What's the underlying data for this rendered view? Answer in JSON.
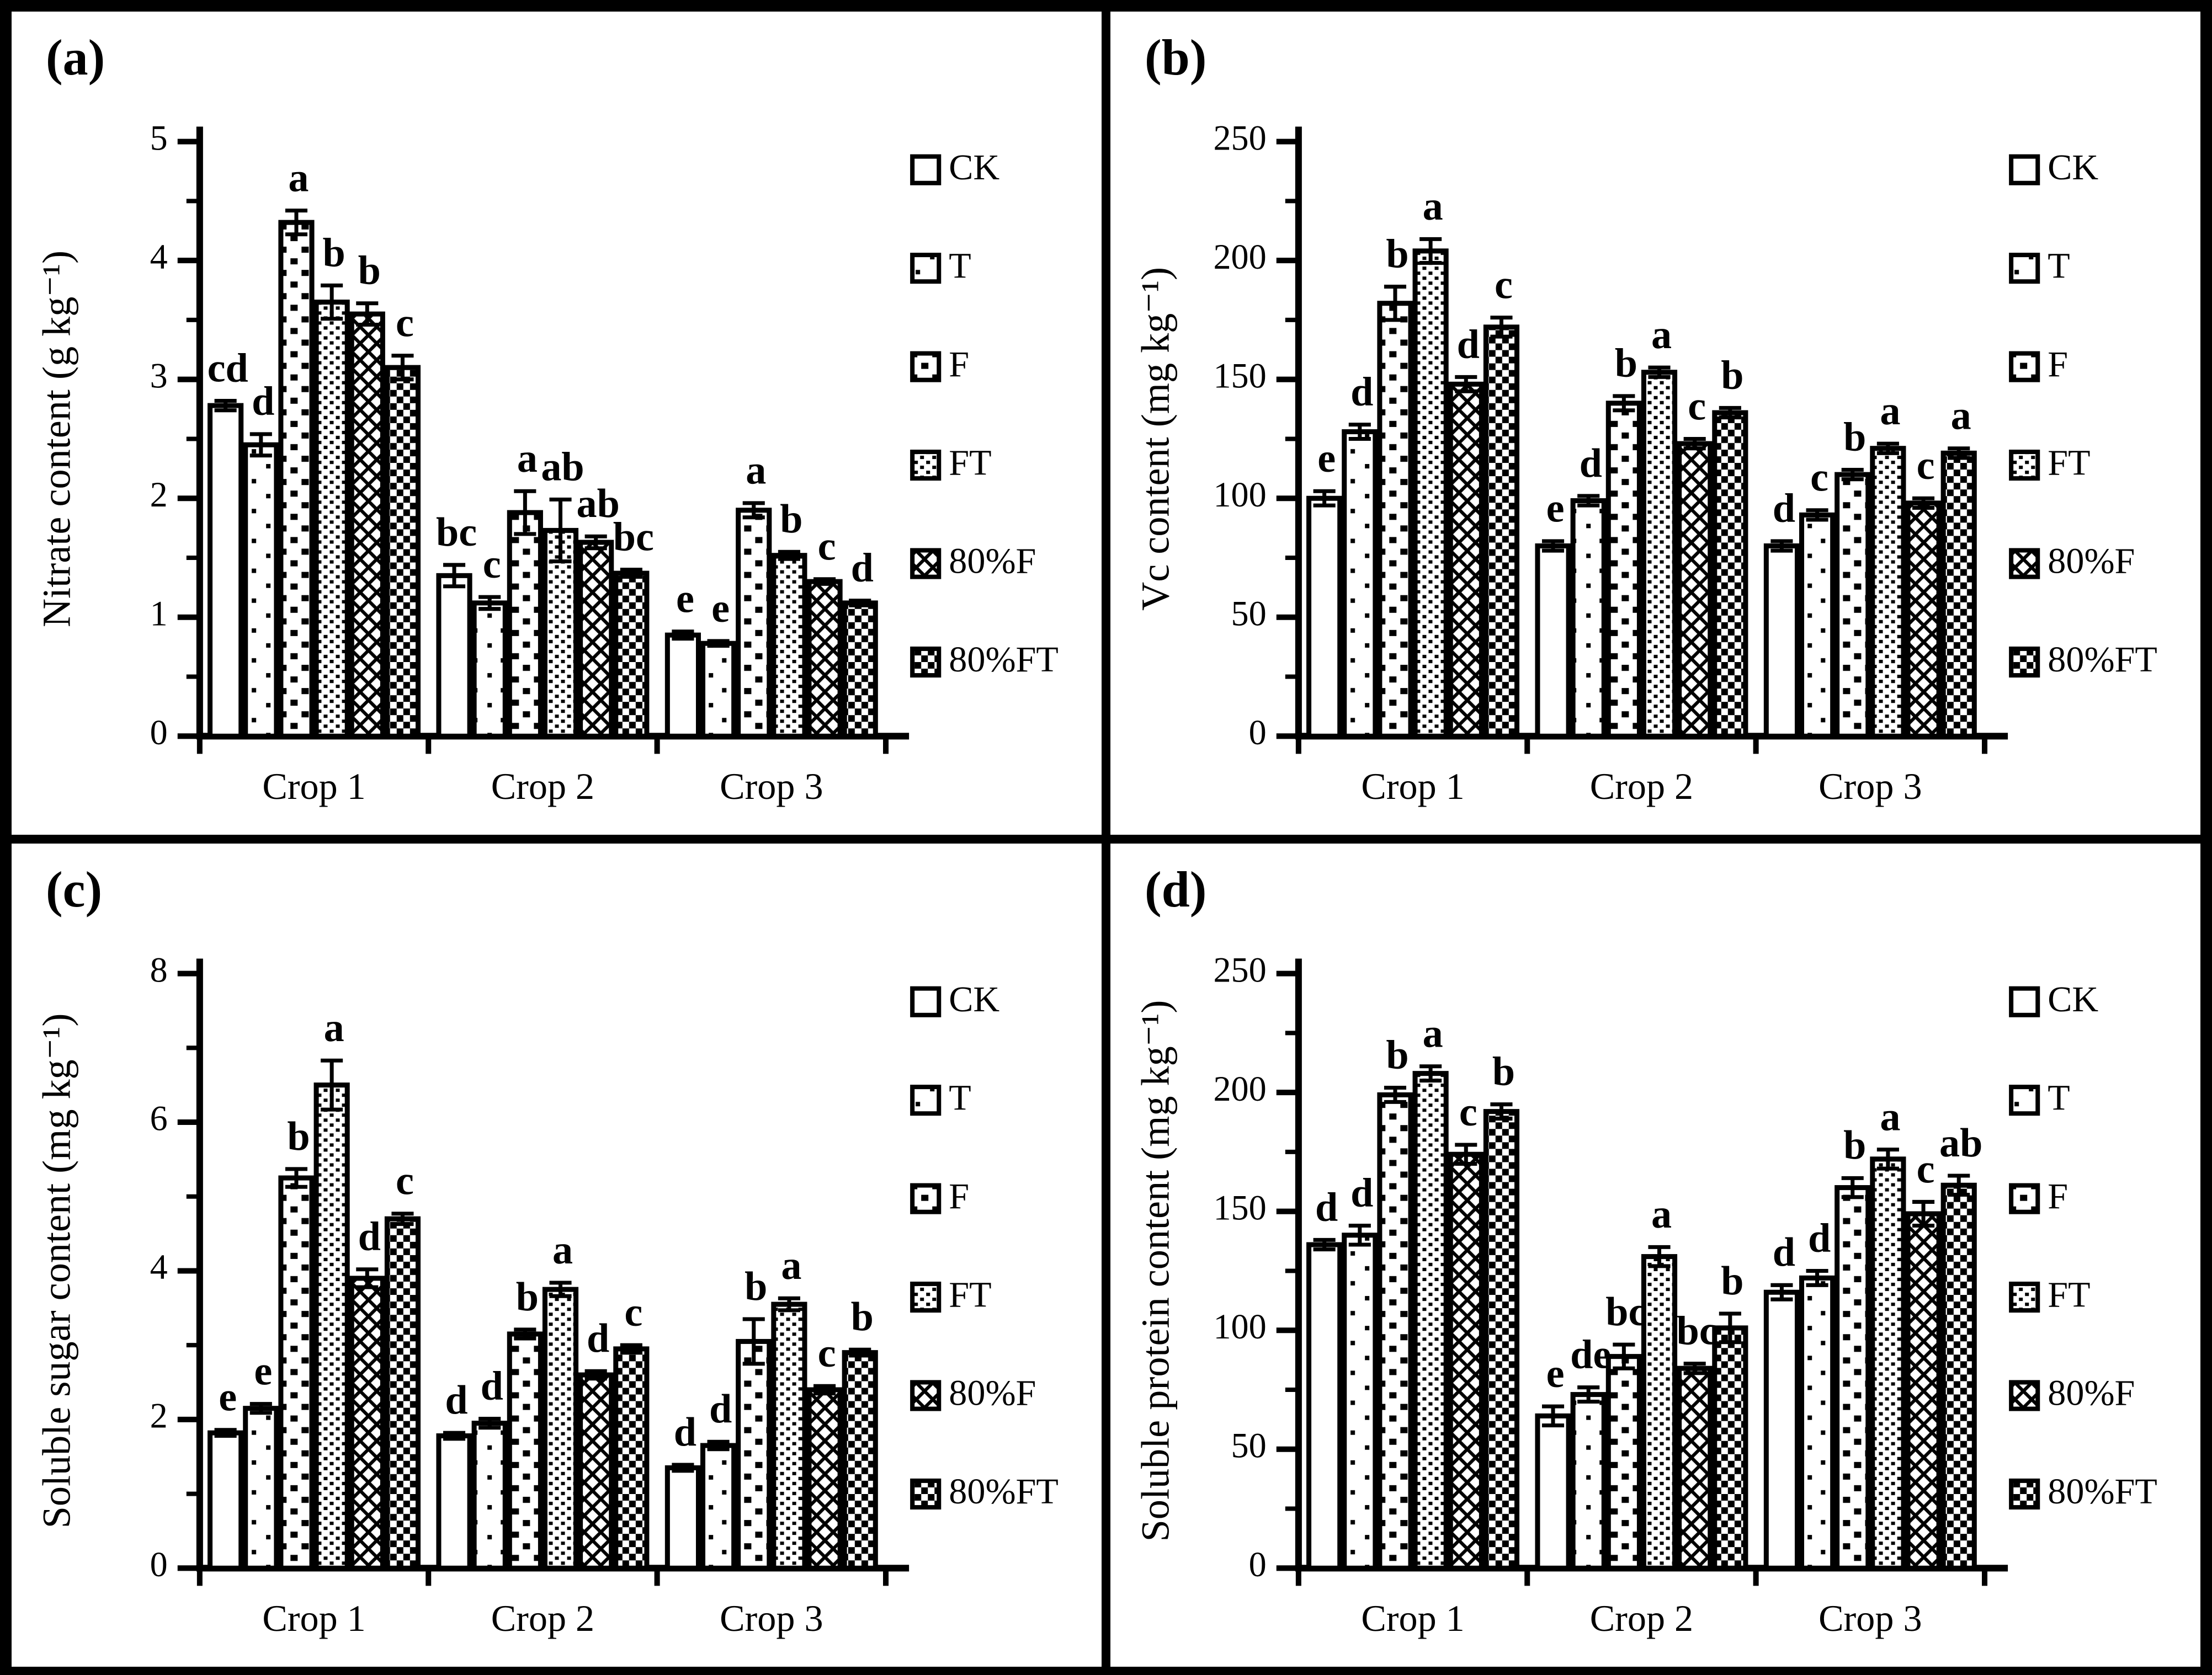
{
  "chart_data": [
    {
      "panel": "(a)",
      "type": "bar",
      "ylabel": "Nitrate content (g kg⁻¹)",
      "ylim": [
        0,
        5
      ],
      "ytick_step": 1,
      "yminor_step": 0.5,
      "grid": false,
      "legend_position": "right",
      "categories": [
        "Crop 1",
        "Crop 2",
        "Crop 3"
      ],
      "series": [
        {
          "name": "CK",
          "values": [
            2.78,
            1.35,
            0.85
          ],
          "errors": [
            0.04,
            0.09,
            0.03
          ],
          "letters": [
            "cd",
            "bc",
            "e"
          ]
        },
        {
          "name": "T",
          "values": [
            2.45,
            1.12,
            0.78
          ],
          "errors": [
            0.09,
            0.05,
            0.02
          ],
          "letters": [
            "d",
            "c",
            "e"
          ]
        },
        {
          "name": "F",
          "values": [
            4.32,
            1.88,
            1.9
          ],
          "errors": [
            0.1,
            0.18,
            0.06
          ],
          "letters": [
            "a",
            "a",
            "a"
          ]
        },
        {
          "name": "FT",
          "values": [
            3.65,
            1.73,
            1.52
          ],
          "errors": [
            0.14,
            0.26,
            0.03
          ],
          "letters": [
            "b",
            "ab",
            "b"
          ]
        },
        {
          "name": "80%F",
          "values": [
            3.55,
            1.63,
            1.3
          ],
          "errors": [
            0.09,
            0.05,
            0.02
          ],
          "letters": [
            "b",
            "ab",
            "c"
          ]
        },
        {
          "name": "80%FT",
          "values": [
            3.1,
            1.37,
            1.12
          ],
          "errors": [
            0.1,
            0.03,
            0.02
          ],
          "letters": [
            "c",
            "bc",
            "d"
          ]
        }
      ]
    },
    {
      "panel": "(b)",
      "type": "bar",
      "ylabel": "Vc content (mg kg⁻¹)",
      "ylim": [
        0,
        250
      ],
      "ytick_step": 50,
      "yminor_step": 25,
      "grid": false,
      "legend_position": "right",
      "categories": [
        "Crop 1",
        "Crop 2",
        "Crop 3"
      ],
      "series": [
        {
          "name": "CK",
          "values": [
            100,
            80,
            80
          ],
          "errors": [
            3,
            2,
            2
          ],
          "letters": [
            "e",
            "e",
            "d"
          ]
        },
        {
          "name": "T",
          "values": [
            128,
            99,
            93
          ],
          "errors": [
            3,
            2,
            2
          ],
          "letters": [
            "d",
            "d",
            "c"
          ]
        },
        {
          "name": "F",
          "values": [
            182,
            140,
            110
          ],
          "errors": [
            7,
            3,
            2
          ],
          "letters": [
            "b",
            "b",
            "b"
          ]
        },
        {
          "name": "FT",
          "values": [
            204,
            153,
            121
          ],
          "errors": [
            5,
            2,
            2
          ],
          "letters": [
            "a",
            "a",
            "a"
          ]
        },
        {
          "name": "80%F",
          "values": [
            148,
            123,
            98
          ],
          "errors": [
            3,
            2,
            2
          ],
          "letters": [
            "d",
            "c",
            "c"
          ]
        },
        {
          "name": "80%FT",
          "values": [
            172,
            136,
            119
          ],
          "errors": [
            4,
            2,
            2
          ],
          "letters": [
            "c",
            "b",
            "a"
          ]
        }
      ]
    },
    {
      "panel": "(c)",
      "type": "bar",
      "ylabel": "Soluble sugar content (mg kg⁻¹)",
      "ylim": [
        0,
        8
      ],
      "ytick_step": 2,
      "yminor_step": 1,
      "grid": false,
      "legend_position": "right",
      "categories": [
        "Crop 1",
        "Crop 2",
        "Crop 3"
      ],
      "series": [
        {
          "name": "CK",
          "values": [
            1.82,
            1.78,
            1.35
          ],
          "errors": [
            0.04,
            0.04,
            0.04
          ],
          "letters": [
            "e",
            "d",
            "d"
          ]
        },
        {
          "name": "T",
          "values": [
            2.15,
            1.95,
            1.65
          ],
          "errors": [
            0.06,
            0.06,
            0.05
          ],
          "letters": [
            "e",
            "d",
            "d"
          ]
        },
        {
          "name": "F",
          "values": [
            5.25,
            3.15,
            3.05
          ],
          "errors": [
            0.12,
            0.06,
            0.3
          ],
          "letters": [
            "b",
            "b",
            "b"
          ]
        },
        {
          "name": "FT",
          "values": [
            6.5,
            3.75,
            3.55
          ],
          "errors": [
            0.33,
            0.09,
            0.08
          ],
          "letters": [
            "a",
            "a",
            "a"
          ]
        },
        {
          "name": "80%F",
          "values": [
            3.9,
            2.6,
            2.4
          ],
          "errors": [
            0.12,
            0.05,
            0.05
          ],
          "letters": [
            "d",
            "d",
            "c"
          ]
        },
        {
          "name": "80%FT",
          "values": [
            4.7,
            2.95,
            2.9
          ],
          "errors": [
            0.07,
            0.05,
            0.04
          ],
          "letters": [
            "c",
            "c",
            "b"
          ]
        }
      ]
    },
    {
      "panel": "(d)",
      "type": "bar",
      "ylabel": "Soluble protein  content (mg kg⁻¹)",
      "ylim": [
        0,
        250
      ],
      "ytick_step": 50,
      "yminor_step": 25,
      "grid": false,
      "legend_position": "right",
      "categories": [
        "Crop 1",
        "Crop 2",
        "Crop 3"
      ],
      "series": [
        {
          "name": "CK",
          "values": [
            136,
            64,
            116
          ],
          "errors": [
            2,
            4,
            3
          ],
          "letters": [
            "d",
            "e",
            "d"
          ]
        },
        {
          "name": "T",
          "values": [
            140,
            73,
            122
          ],
          "errors": [
            4,
            3,
            3
          ],
          "letters": [
            "d",
            "de",
            "d"
          ]
        },
        {
          "name": "F",
          "values": [
            199,
            89,
            160
          ],
          "errors": [
            3,
            5,
            4
          ],
          "letters": [
            "b",
            "bc",
            "b"
          ]
        },
        {
          "name": "FT",
          "values": [
            208,
            131,
            172
          ],
          "errors": [
            3,
            4,
            4
          ],
          "letters": [
            "a",
            "a",
            "a"
          ]
        },
        {
          "name": "80%F",
          "values": [
            174,
            84,
            149
          ],
          "errors": [
            4,
            2,
            5
          ],
          "letters": [
            "c",
            "bc",
            "c"
          ]
        },
        {
          "name": "80%FT",
          "values": [
            192,
            101,
            161
          ],
          "errors": [
            3,
            6,
            4
          ],
          "letters": [
            "b",
            "b",
            "ab"
          ]
        }
      ]
    }
  ],
  "style": {
    "ink_color": "#000000",
    "background_color": "#ffffff",
    "pattern_names": [
      "plain-white",
      "sparse-dots",
      "square-dots",
      "dense-fine-dots",
      "diagonal-crosshatch",
      "checkerboard"
    ]
  }
}
